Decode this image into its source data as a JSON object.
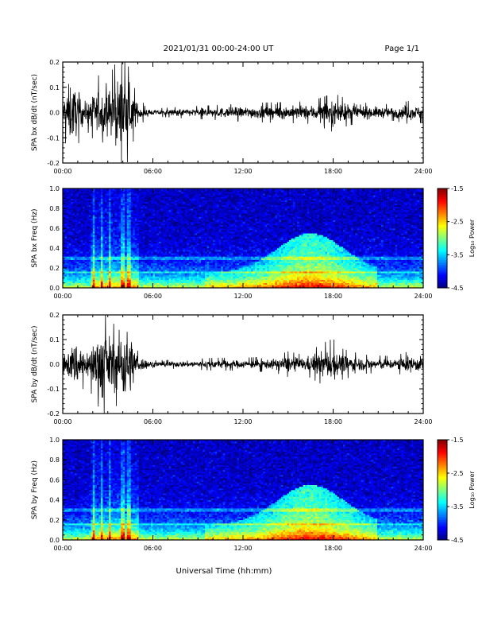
{
  "header": {
    "date_range": "2021/01/31  00:00-24:00 UT",
    "page": "Page 1/1"
  },
  "xlabel": "Universal Time (hh:mm)",
  "time_ticks": [
    "00:00",
    "06:00",
    "12:00",
    "18:00",
    "24:00"
  ],
  "colorbar": {
    "label": "Log₁₀ Power",
    "ticks": [
      "-1.5",
      "-2.5",
      "-3.5",
      "-4.5"
    ],
    "range": [
      -4.5,
      -1.5
    ]
  },
  "chart_data": [
    {
      "type": "line",
      "ylabel": "SPA bx dB/dt (nT/sec)",
      "xlim_hours": [
        0,
        24
      ],
      "ylim": [
        -0.2,
        0.2
      ],
      "yticks": [
        "0.2",
        "0.1",
        "0.0",
        "-0.1",
        "-0.2"
      ],
      "yticks_values": [
        0.2,
        0.1,
        0.0,
        -0.1,
        -0.2
      ],
      "envelope": {
        "hours": [
          0,
          0.5,
          1,
          1.5,
          2,
          2.3,
          2.8,
          3,
          3.5,
          4,
          4.5,
          5,
          6,
          7,
          9,
          11,
          13,
          15,
          16.5,
          17.5,
          18,
          19,
          20,
          22,
          23,
          24
        ],
        "amplitude": [
          0.06,
          0.15,
          0.1,
          0.05,
          0.08,
          0.12,
          0.08,
          0.1,
          0.15,
          0.2,
          0.12,
          0.04,
          0.012,
          0.015,
          0.02,
          0.025,
          0.03,
          0.032,
          0.035,
          0.05,
          0.06,
          0.04,
          0.03,
          0.025,
          0.035,
          0.03
        ]
      }
    },
    {
      "type": "heatmap",
      "ylabel": "SPA bx Freq (Hz)",
      "xlim_hours": [
        0,
        24
      ],
      "ylim": [
        0.0,
        1.0
      ],
      "yticks": [
        "1.0",
        "0.8",
        "0.6",
        "0.4",
        "0.2",
        "0.0"
      ],
      "yticks_values": [
        1.0,
        0.8,
        0.6,
        0.4,
        0.2,
        0.0
      ],
      "colorbar_range": [
        -4.5,
        -1.5
      ]
    },
    {
      "type": "line",
      "ylabel": "SPA by dB/dt (nT/sec)",
      "xlim_hours": [
        0,
        24
      ],
      "ylim": [
        -0.2,
        0.2
      ],
      "yticks": [
        "0.2",
        "0.1",
        "0.0",
        "-0.1",
        "-0.2"
      ],
      "yticks_values": [
        0.2,
        0.1,
        0.0,
        -0.1,
        -0.2
      ],
      "envelope": {
        "hours": [
          0,
          0.5,
          1,
          1.5,
          2,
          2.5,
          3,
          3.5,
          4,
          4.5,
          5,
          6,
          8,
          10,
          12,
          14,
          15,
          16,
          17.5,
          18,
          18.5,
          20,
          22,
          23,
          24
        ],
        "amplitude": [
          0.05,
          0.08,
          0.12,
          0.06,
          0.1,
          0.2,
          0.15,
          0.12,
          0.2,
          0.15,
          0.04,
          0.012,
          0.015,
          0.02,
          0.02,
          0.025,
          0.04,
          0.03,
          0.07,
          0.08,
          0.05,
          0.03,
          0.025,
          0.04,
          0.035
        ]
      }
    },
    {
      "type": "heatmap",
      "ylabel": "SPA by Freq (Hz)",
      "xlim_hours": [
        0,
        24
      ],
      "ylim": [
        0.0,
        1.0
      ],
      "yticks": [
        "1.0",
        "0.8",
        "0.6",
        "0.4",
        "0.2",
        "0.0"
      ],
      "yticks_values": [
        1.0,
        0.8,
        0.6,
        0.4,
        0.2,
        0.0
      ],
      "colorbar_range": [
        -4.5,
        -1.5
      ]
    }
  ]
}
